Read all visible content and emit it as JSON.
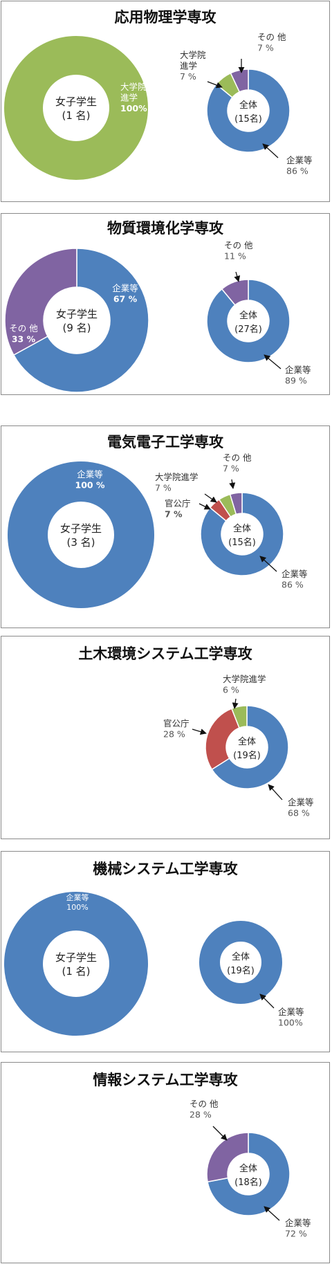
{
  "colors": {
    "blue": "#4e81bd",
    "green": "#9bbb59",
    "red": "#c0504d",
    "purple": "#8064a2"
  },
  "chart_data": [
    {
      "type": "pie",
      "title": "応用物理学専攻",
      "charts": [
        {
          "center_lines": [
            "女子学生",
            "(1 名)"
          ],
          "slices": [
            {
              "label": "大学院\n進学",
              "value": 100,
              "value_label": "100%",
              "color": "green"
            }
          ]
        },
        {
          "center_lines": [
            "全体",
            "(15名)"
          ],
          "slices": [
            {
              "label": "企業等",
              "value": 86,
              "value_label": "86 %",
              "color": "blue"
            },
            {
              "label": "大学院\n進学",
              "value": 7,
              "value_label": "7 %",
              "color": "green"
            },
            {
              "label": "その 他",
              "value": 7,
              "value_label": "7 %",
              "color": "purple"
            }
          ]
        }
      ]
    },
    {
      "type": "pie",
      "title": "物質環境化学専攻",
      "charts": [
        {
          "center_lines": [
            "女子学生",
            "(9 名)"
          ],
          "slices": [
            {
              "label": "企業等",
              "value": 67,
              "value_label": "67 %",
              "color": "blue"
            },
            {
              "label": "その 他",
              "value": 33,
              "value_label": "33 %",
              "color": "purple"
            }
          ]
        },
        {
          "center_lines": [
            "全体",
            "(27名)"
          ],
          "slices": [
            {
              "label": "企業等",
              "value": 89,
              "value_label": "89 %",
              "color": "blue"
            },
            {
              "label": "その 他",
              "value": 11,
              "value_label": "11 %",
              "color": "purple"
            }
          ]
        }
      ]
    },
    {
      "type": "pie",
      "title": "電気電子工学専攻",
      "charts": [
        {
          "center_lines": [
            "女子学生",
            "(3 名)"
          ],
          "slices": [
            {
              "label": "企業等",
              "value": 100,
              "value_label": "100 %",
              "color": "blue"
            }
          ]
        },
        {
          "center_lines": [
            "全体",
            "(15名)"
          ],
          "slices": [
            {
              "label": "企業等",
              "value": 86,
              "value_label": "86 %",
              "color": "blue"
            },
            {
              "label": "官公庁",
              "value": "",
              "value_label": "7 %",
              "color": "red"
            },
            {
              "label": "大学院進学",
              "value": "",
              "value_label": "7 %",
              "color": "green"
            },
            {
              "label": "その 他",
              "value": "",
              "value_label": "7 %",
              "color": "purple"
            }
          ]
        }
      ]
    },
    {
      "type": "pie",
      "title": "土木環境システム工学専攻",
      "charts": [
        {
          "center_lines": [
            "全体",
            "(19名)"
          ],
          "slices": [
            {
              "label": "企業等",
              "value": 68,
              "value_label": "68 %",
              "color": "blue"
            },
            {
              "label": "官公庁",
              "value": 28,
              "value_label": "28 %",
              "color": "red"
            },
            {
              "label": "大学院進学",
              "value": 6,
              "value_label": "6 %",
              "color": "green"
            }
          ]
        }
      ]
    },
    {
      "type": "pie",
      "title": "機械システム工学専攻",
      "charts": [
        {
          "center_lines": [
            "女子学生",
            "(1 名)"
          ],
          "slices": [
            {
              "label": "企業等",
              "value": 100,
              "value_label": "100%",
              "color": "blue"
            }
          ]
        },
        {
          "center_lines": [
            "全体",
            "(19名)"
          ],
          "slices": [
            {
              "label": "企業等",
              "value": 100,
              "value_label": "100%",
              "color": "blue"
            }
          ]
        }
      ]
    },
    {
      "type": "pie",
      "title": "情報システム工学専攻",
      "charts": [
        {
          "center_lines": [
            "全体",
            "(18名)"
          ],
          "slices": [
            {
              "label": "企業等",
              "value": 72,
              "value_label": "72 %",
              "color": "blue"
            },
            {
              "label": "その 他",
              "value": 28,
              "value_label": "28 %",
              "color": "purple"
            }
          ]
        }
      ]
    }
  ]
}
